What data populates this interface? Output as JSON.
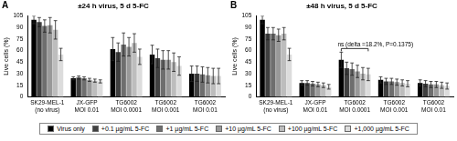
{
  "chart_data": [
    {
      "type": "bar",
      "title": "±24 h virus, 5 d 5-FC",
      "y_label": "Live cells (%)",
      "categories": [
        [
          "SK29-MEL-1",
          "(no virus)"
        ],
        [
          "JX-GFP",
          "MOI 0.01"
        ],
        [
          "TG6002",
          "MOI 0.0001"
        ],
        [
          "TG6002",
          "MOI 0.001"
        ],
        [
          "TG6002",
          "MOI 0.01"
        ]
      ],
      "series": [
        {
          "name": "Virus only",
          "color": "#000000",
          "values": [
            100,
            24,
            62,
            55,
            30
          ],
          "errors": [
            5,
            2,
            15,
            12,
            10
          ]
        },
        {
          "name": "+0.1 µg/mL 5-FC",
          "color": "#404040",
          "values": [
            97,
            25,
            58,
            50,
            30
          ],
          "errors": [
            6,
            2,
            12,
            12,
            10
          ]
        },
        {
          "name": "+1 µg/mL 5-FC",
          "color": "#6e6e6e",
          "values": [
            92,
            24,
            68,
            48,
            29
          ],
          "errors": [
            8,
            2,
            15,
            12,
            10
          ]
        },
        {
          "name": "+10 µg/mL 5-FC",
          "color": "#999999",
          "values": [
            93,
            22,
            65,
            48,
            28
          ],
          "errors": [
            10,
            2,
            12,
            12,
            10
          ]
        },
        {
          "name": "+100 µg/mL 5-FC",
          "color": "#bdbdbd",
          "values": [
            87,
            21,
            70,
            45,
            27
          ],
          "errors": [
            12,
            2,
            12,
            12,
            10
          ]
        },
        {
          "name": "+1,000 µg/mL 5-FC",
          "color": "#dcdcdc",
          "values": [
            55,
            20,
            52,
            40,
            27
          ],
          "errors": [
            8,
            2,
            10,
            12,
            10
          ]
        }
      ],
      "ylim": [
        0,
        105
      ],
      "yticks": [
        0,
        15,
        30,
        45,
        60,
        75,
        90,
        105
      ],
      "grid": false,
      "legend": "bottom",
      "annotations": [
        {
          "text": "A"
        }
      ]
    },
    {
      "type": "bar",
      "title": "±48 h virus, 5 d 5-FC",
      "y_label": "Live cells (%)",
      "categories": [
        [
          "SK29-MEL-1",
          "(no virus)"
        ],
        [
          "JX-GFP",
          "MOI 0.01"
        ],
        [
          "TG6002",
          "MOI 0.0001"
        ],
        [
          "TG6002",
          "MOI 0.001"
        ],
        [
          "TG6002",
          "MOI 0.01"
        ]
      ],
      "series": [
        {
          "name": "Virus only",
          "color": "#000000",
          "values": [
            100,
            18,
            48,
            22,
            18
          ],
          "errors": [
            5,
            3,
            10,
            4,
            4
          ]
        },
        {
          "name": "+0.1 µg/mL 5-FC",
          "color": "#404040",
          "values": [
            82,
            18,
            37,
            20,
            17
          ],
          "errors": [
            8,
            3,
            8,
            4,
            4
          ]
        },
        {
          "name": "+1 µg/mL 5-FC",
          "color": "#6e6e6e",
          "values": [
            82,
            17,
            36,
            20,
            16
          ],
          "errors": [
            8,
            3,
            8,
            4,
            4
          ]
        },
        {
          "name": "+10 µg/mL 5-FC",
          "color": "#999999",
          "values": [
            80,
            16,
            33,
            19,
            16
          ],
          "errors": [
            8,
            3,
            8,
            4,
            4
          ]
        },
        {
          "name": "+100 µg/mL 5-FC",
          "color": "#bdbdbd",
          "values": [
            82,
            15,
            30,
            18,
            15
          ],
          "errors": [
            8,
            3,
            8,
            4,
            4
          ]
        },
        {
          "name": "+1,000 µg/mL 5-FC",
          "color": "#dcdcdc",
          "values": [
            55,
            13,
            29,
            17,
            14
          ],
          "errors": [
            8,
            3,
            8,
            4,
            4
          ]
        }
      ],
      "ylim": [
        0,
        105
      ],
      "yticks": [
        0,
        15,
        30,
        45,
        60,
        75,
        90,
        105
      ],
      "grid": false,
      "legend": "bottom",
      "annotations": [
        {
          "text": "B"
        },
        {
          "text": "ns (delta =18.2%, P=0.1375)",
          "category": [
            "TG6002",
            "MOI 0.0001"
          ],
          "from": "Virus only",
          "to": "+1,000 µg/mL 5-FC"
        }
      ]
    }
  ]
}
